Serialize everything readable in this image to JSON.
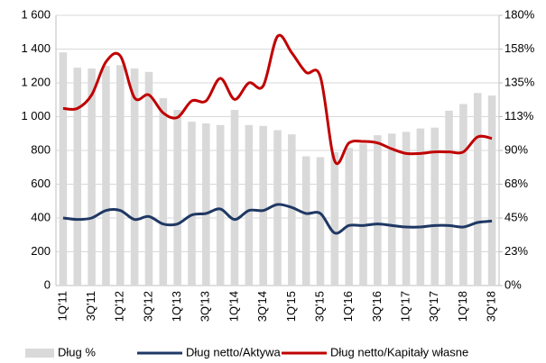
{
  "chart_data": {
    "type": "bar_line",
    "categories": [
      "1Q'11",
      null,
      "3Q'11",
      null,
      "1Q'12",
      null,
      "3Q'12",
      null,
      "1Q'13",
      null,
      "3Q'13",
      null,
      "1Q'14",
      null,
      "3Q'14",
      null,
      "1Q'15",
      null,
      "3Q'15",
      null,
      "1Q'16",
      null,
      "3Q'16",
      null,
      "1Q'17",
      null,
      "3Q'17",
      null,
      "1Q'18",
      null,
      "3Q'18"
    ],
    "series": [
      {
        "name": "Dług %",
        "type": "bar",
        "color": "#d9d9d9",
        "values": [
          1380,
          1290,
          1285,
          1300,
          1305,
          1285,
          1265,
          1110,
          1040,
          970,
          960,
          950,
          1040,
          950,
          945,
          920,
          895,
          765,
          760,
          790,
          815,
          840,
          890,
          900,
          910,
          930,
          935,
          1035,
          1075,
          1140,
          1125
        ]
      },
      {
        "name": "Dług netto/Aktywa",
        "type": "line",
        "axis": "y2",
        "color": "#1f3864",
        "values": [
          45,
          44,
          45,
          50,
          50,
          44,
          46,
          41,
          41,
          47,
          48,
          51,
          44,
          50,
          50,
          54,
          52,
          48,
          48,
          35,
          40,
          40,
          41,
          40,
          39,
          39,
          40,
          40,
          39,
          42,
          43
        ]
      },
      {
        "name": "Dług netto/Kapitały własne",
        "type": "line",
        "axis": "y2",
        "color": "#c00000",
        "values": [
          118,
          118,
          127,
          149,
          153,
          125,
          127,
          115,
          112,
          123,
          123,
          138,
          124,
          135,
          133,
          166,
          155,
          142,
          139,
          83,
          95,
          96,
          95,
          91,
          88,
          88,
          89,
          89,
          89,
          99,
          98
        ]
      }
    ],
    "ylim": [
      0,
      1600
    ],
    "yticks": [
      0,
      200,
      400,
      600,
      800,
      {
        "value": 1000,
        "label": "1 000"
      },
      {
        "value": 1200,
        "label": "1 200"
      },
      {
        "value": 1400,
        "label": "1 400"
      },
      {
        "value": 1600,
        "label": "1 600"
      }
    ],
    "y2lim": [
      0,
      180
    ],
    "y2ticks": [
      {
        "value": 0,
        "label": "0%"
      },
      {
        "value": 22.5,
        "label": "23%"
      },
      {
        "value": 45,
        "label": "45%"
      },
      {
        "value": 67.5,
        "label": "68%"
      },
      {
        "value": 90,
        "label": "90%"
      },
      {
        "value": 112.5,
        "label": "113%"
      },
      {
        "value": 135,
        "label": "135%"
      },
      {
        "value": 157.5,
        "label": "158%"
      },
      {
        "value": 180,
        "label": "180%"
      }
    ],
    "grid": true
  }
}
